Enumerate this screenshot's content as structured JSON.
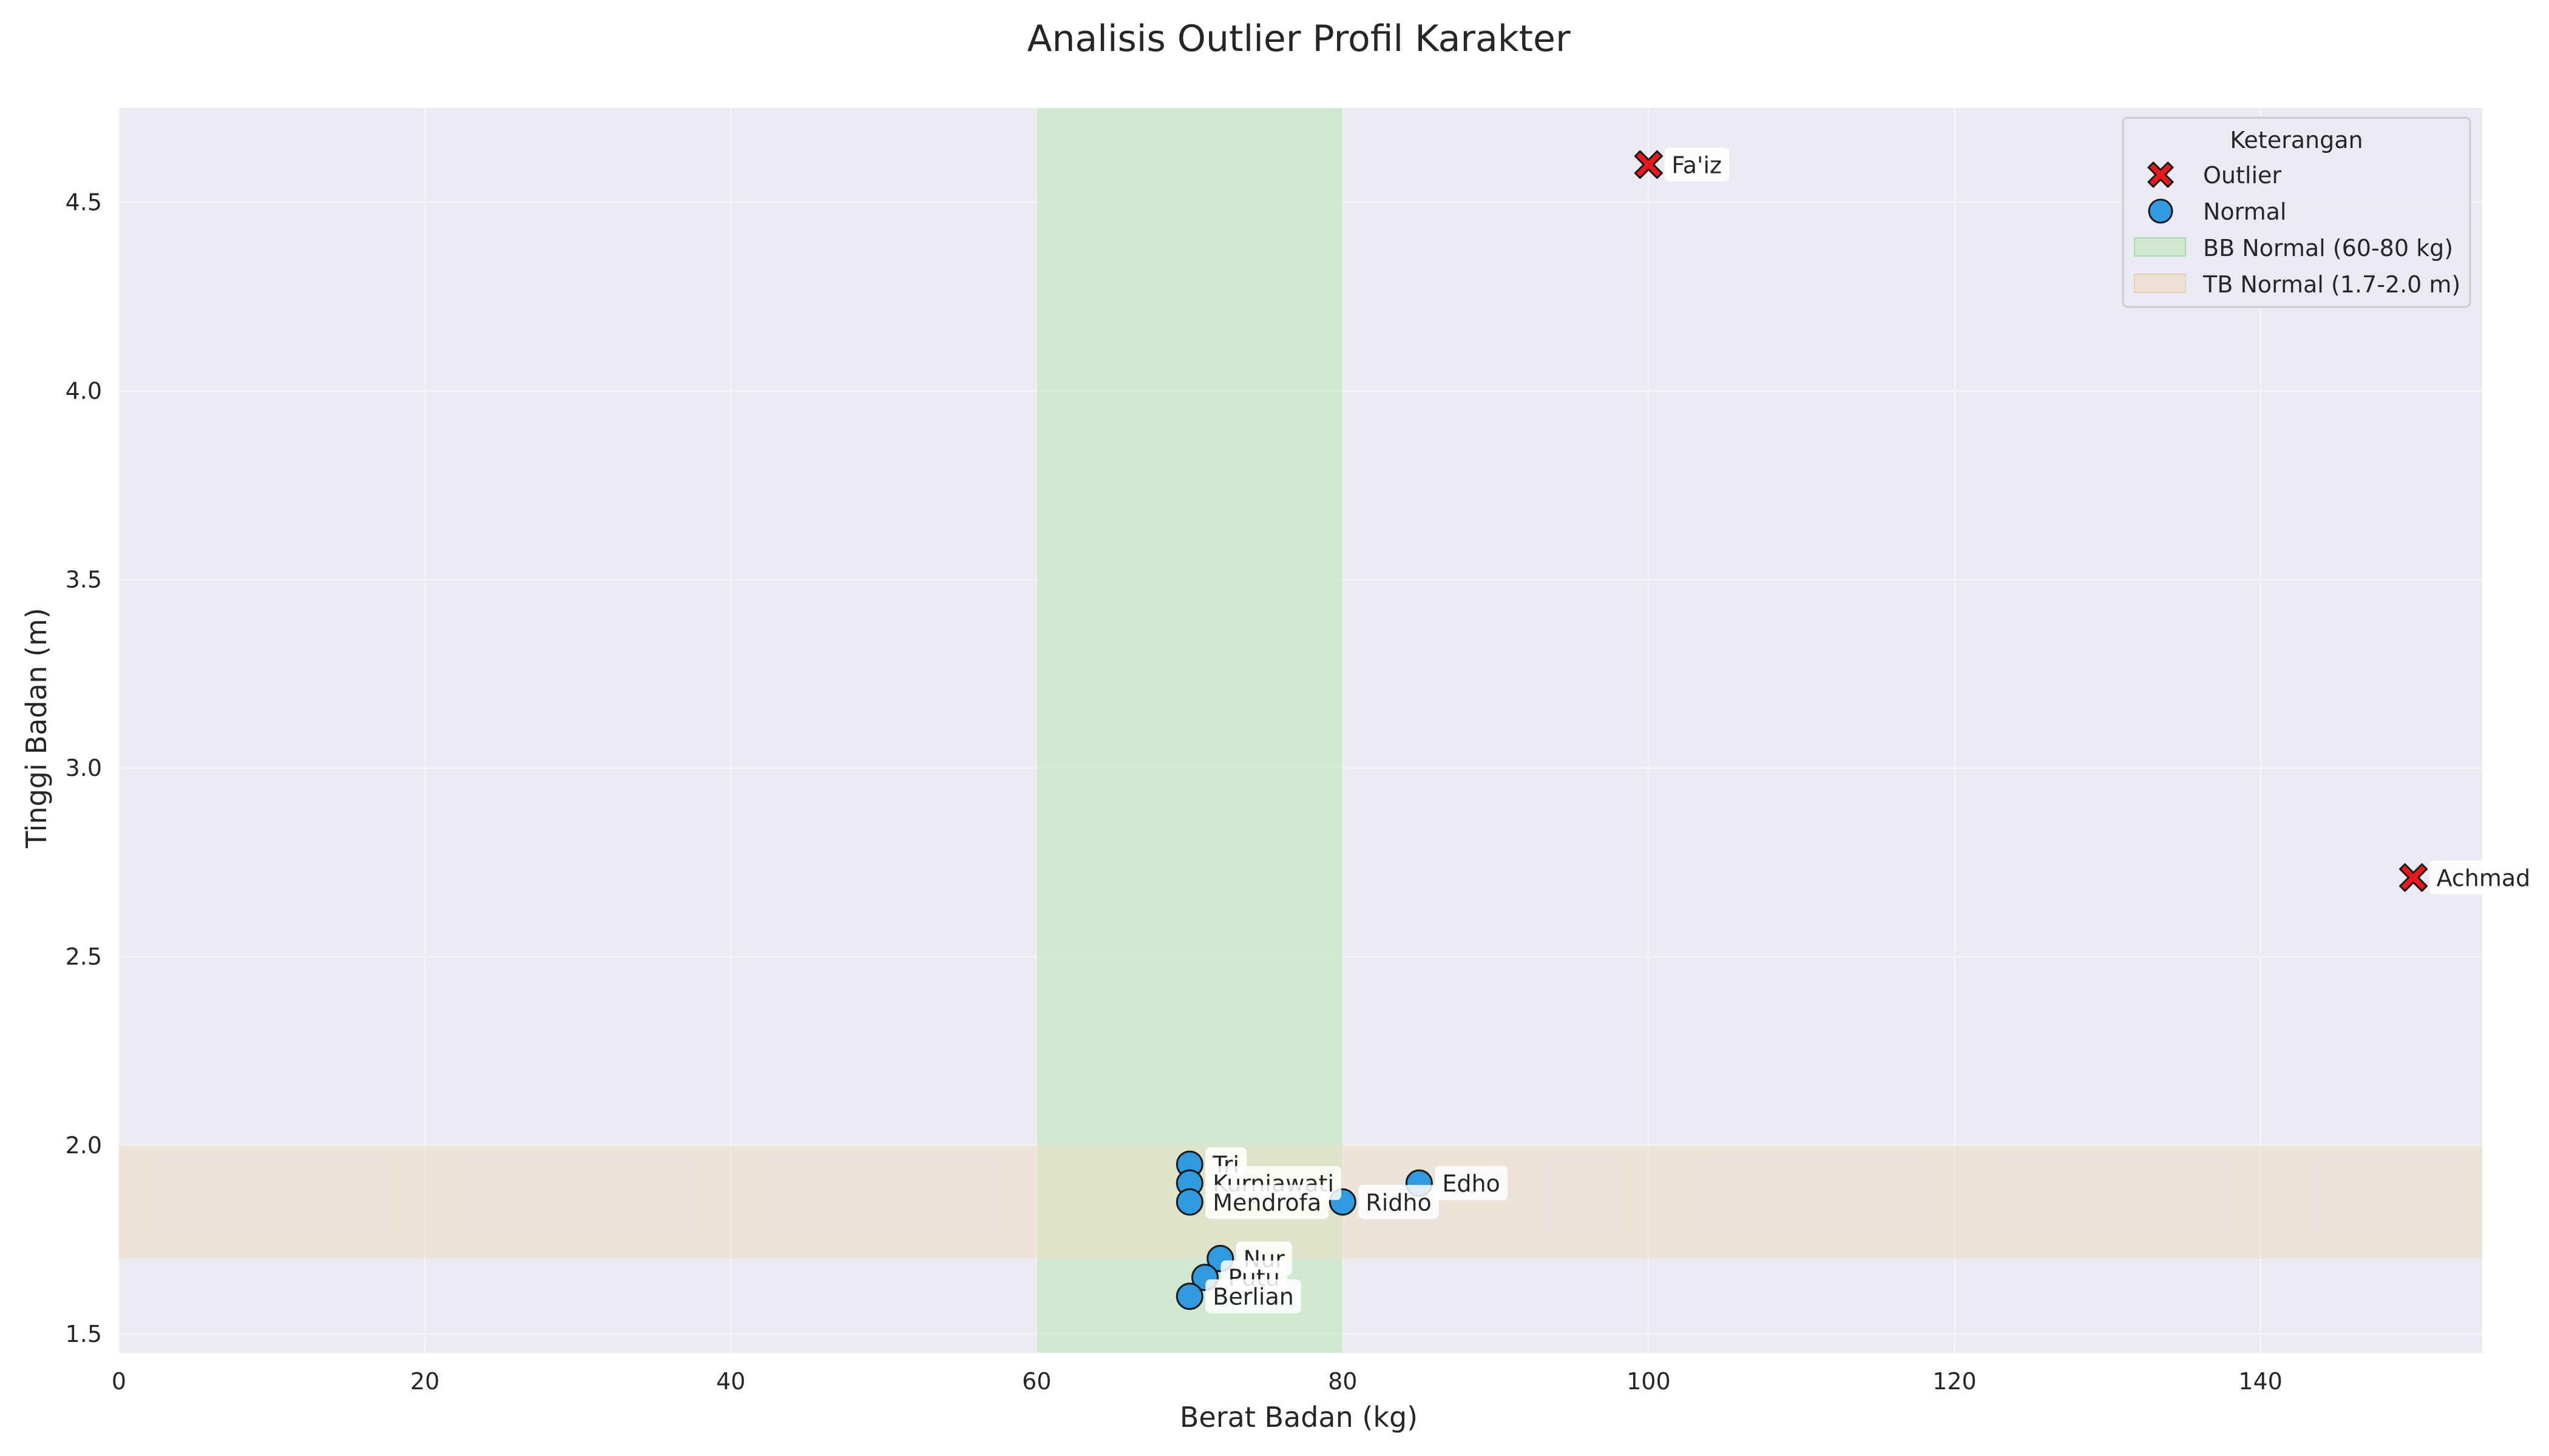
{
  "chart_data": {
    "type": "scatter",
    "title": "Analisis Outlier Profil Karakter",
    "xlabel": "Berat Badan (kg)",
    "ylabel": "Tinggi Badan (m)",
    "xlim": [
      0,
      154.5
    ],
    "ylim": [
      1.45,
      4.75
    ],
    "xticks": [
      0,
      20,
      40,
      60,
      80,
      100,
      120,
      140
    ],
    "yticks": [
      1.5,
      2.0,
      2.5,
      3.0,
      3.5,
      4.0,
      4.5
    ],
    "ytick_labels": [
      "1.5",
      "2.0",
      "2.5",
      "3.0",
      "3.5",
      "4.0",
      "4.5"
    ],
    "grid": true,
    "legend_position": "top-right",
    "bands": [
      {
        "name": "BB Normal (60-80 kg)",
        "axis": "x",
        "from": 60,
        "to": 80,
        "color": "#b7e6b7"
      },
      {
        "name": "TB Normal (1.7-2.0 m)",
        "axis": "y",
        "from": 1.7,
        "to": 2.0,
        "color": "#f0dcc4"
      }
    ],
    "series": [
      {
        "name": "Outlier",
        "marker": "x",
        "color": "#e8191c",
        "points": [
          {
            "label": "Fa'iz",
            "x": 100,
            "y": 4.6
          },
          {
            "label": "Achmad",
            "x": 150,
            "y": 2.71
          }
        ]
      },
      {
        "name": "Normal",
        "marker": "circle",
        "color": "#2f9ae0",
        "points": [
          {
            "label": "Tri",
            "x": 70,
            "y": 1.95
          },
          {
            "label": "Kurniawati",
            "x": 70,
            "y": 1.9
          },
          {
            "label": "Mendrofa",
            "x": 70,
            "y": 1.85
          },
          {
            "label": "Edho",
            "x": 85,
            "y": 1.9
          },
          {
            "label": "Ridho",
            "x": 80,
            "y": 1.85
          },
          {
            "label": "Nur",
            "x": 72,
            "y": 1.7
          },
          {
            "label": "Putu",
            "x": 71,
            "y": 1.65
          },
          {
            "label": "Berlian",
            "x": 70,
            "y": 1.6
          }
        ]
      }
    ],
    "legend": {
      "title": "Keterangan",
      "entries": [
        "Outlier",
        "Normal",
        "BB Normal (60-80 kg)",
        "TB Normal (1.7-2.0 m)"
      ]
    }
  },
  "colors": {
    "plot_background": "#eaeaf2",
    "grid": "#f4f4f8",
    "marker_edge": "#1a1a1a"
  }
}
